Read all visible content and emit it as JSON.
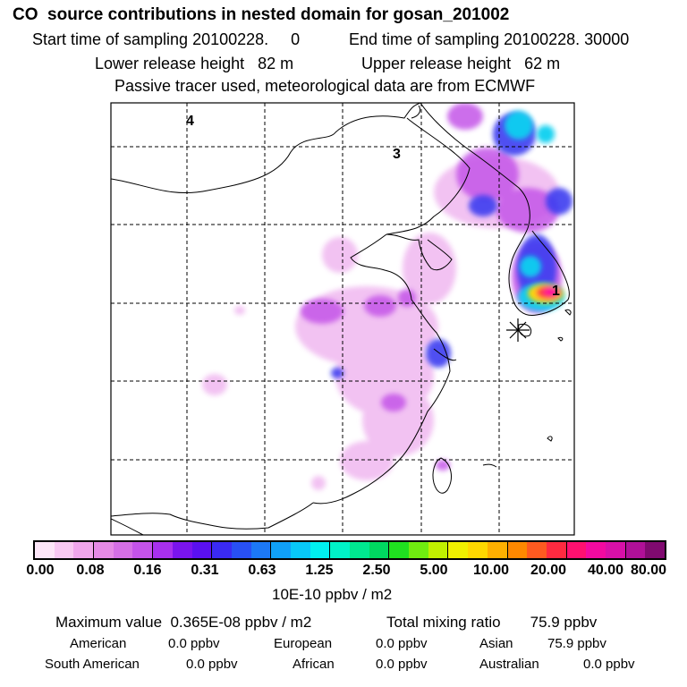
{
  "header": {
    "title": "CO  source contributions in nested domain for gosan_201002",
    "start_sampling": "Start time of sampling 20100228.     0",
    "end_sampling": "End time of sampling 20100228. 30000",
    "lower_release": "Lower release height   82 m",
    "upper_release": "Upper release height   62 m",
    "passive_note": "Passive tracer used, meteorological data are from ECMWF"
  },
  "map": {
    "labels": [
      "4",
      "3",
      "1"
    ],
    "marker": "release-site-star"
  },
  "colorbar": {
    "colors": [
      "#fde6f8",
      "#f8c8f2",
      "#f0a6ec",
      "#e58ae6",
      "#d56fe6",
      "#c453ea",
      "#a830ee",
      "#7a14ee",
      "#5a10f0",
      "#3a2af2",
      "#2850f4",
      "#1c78f6",
      "#10a0f8",
      "#08c8f8",
      "#00f0f0",
      "#00f2c8",
      "#00e890",
      "#00d860",
      "#20e020",
      "#70ec10",
      "#c0f000",
      "#f0f000",
      "#ffd800",
      "#ffb000",
      "#ff8800",
      "#ff5a20",
      "#ff2a40",
      "#ff1070",
      "#f20aa0",
      "#d810a8",
      "#b01098",
      "#800a70"
    ],
    "tick_labels": [
      "0.00",
      "0.08",
      "0.16",
      "0.31",
      "0.63",
      "1.25",
      "2.50",
      "5.00",
      "10.00",
      "20.00",
      "40.00",
      "80.00"
    ],
    "units": "10E-10 ppbv / m2"
  },
  "stats": {
    "maximum": "Maximum value  0.365E-08 ppbv / m2",
    "total": "Total mixing ratio       75.9 ppbv",
    "regions": [
      {
        "label": "American",
        "value": "0.0 ppbv"
      },
      {
        "label": "European",
        "value": "0.0 ppbv"
      },
      {
        "label": "Asian",
        "value": "75.9 ppbv"
      },
      {
        "label": "South American",
        "value": "0.0 ppbv"
      },
      {
        "label": "African",
        "value": "0.0 ppbv"
      },
      {
        "label": "Australian",
        "value": "0.0 ppbv"
      }
    ]
  }
}
